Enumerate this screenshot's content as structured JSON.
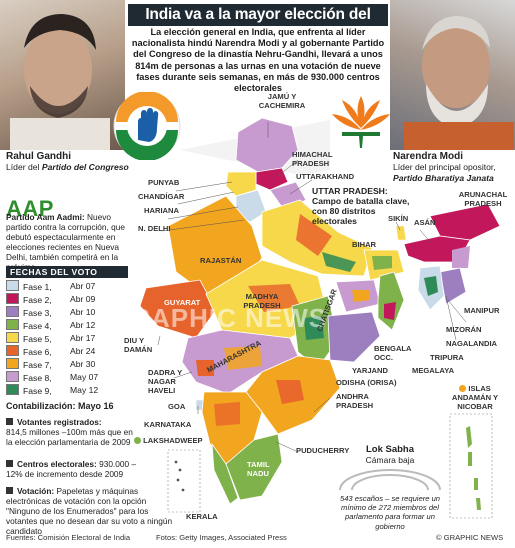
{
  "title": "India va a la mayor elección del mundo",
  "lead": "La elección general en India, que enfrenta al líder nacionalista hindú Narendra Modi y al gobernante Partido del Congreso de la dinastía Nehru-Gandhi, llevará a unos 814m de personas a las urnas en una votación de nueve fases durante seis semanas, en más de 930.000 centros electorales",
  "left_leader": {
    "name": "Rahul Gandhi",
    "role": "Líder del",
    "party": "Partido del Congreso"
  },
  "right_leader": {
    "name": "Narendra Modi",
    "role": "Líder del principal opositor,",
    "party": "Partido Bharatiya Janata"
  },
  "aap": {
    "logo": "AAP",
    "party": "Partido Aam Aadmi:",
    "description": " Nuevo partido contra la corrupción, que debutó espectacularmente en elecciones recientes en Nueva Delhi, también competirá en la próxima"
  },
  "legend": {
    "title": "FECHAS DEL VOTO",
    "phases": [
      {
        "label": "Fase 1,",
        "date": "Abr 07",
        "color": "#c9dbe8"
      },
      {
        "label": "Fase 2,",
        "date": "Abr 09",
        "color": "#c2185b"
      },
      {
        "label": "Fase 3,",
        "date": "Abr 10",
        "color": "#9d7fbf"
      },
      {
        "label": "Fase 4,",
        "date": "Abr 12",
        "color": "#7fb24a"
      },
      {
        "label": "Fase 5,",
        "date": "Abr 17",
        "color": "#f6d84a"
      },
      {
        "label": "Fase 6,",
        "date": "Abr 24",
        "color": "#e7632c"
      },
      {
        "label": "Fase 7,",
        "date": "Abr 30",
        "color": "#f2a51f"
      },
      {
        "label": "Fase 8,",
        "date": "May 07",
        "color": "#c79ad0"
      },
      {
        "label": "Fase 9,",
        "date": "May 12",
        "color": "#2e8b57"
      }
    ]
  },
  "count": "Contabilización: Mayo 16",
  "bullets": {
    "voters_title": "Votantes registrados:",
    "voters_text": "814,5 millones –100m más que en la elección parlamentaria de 2009",
    "centres_title": "Centros electorales:",
    "centres_text": " 930.000 –12% de incremento desde 2009",
    "vote_title": "Votación:",
    "vote_text": " Papeletas y máquinas electrónicas de votación con la opción \"Ninguno de los Enumerados\" para los votantes que no desean dar su voto a ningún candidato"
  },
  "up": {
    "title": "UTTAR PRADESH:",
    "text": "Campo de batalla clave, con 80 distritos electorales"
  },
  "lok_sabha": {
    "title": "Lok Sabha",
    "subtitle": "Cámara baja",
    "note": "543 escaños – se requiere un mínimo de 272 miembros del parlamento para formar un gobierno"
  },
  "islands": "ISLAS ANDAMÁN Y NICOBAR",
  "regions": {
    "jk": "JAMÚ Y CACHEMIRA",
    "hp": "HIMACHAL PRADESH",
    "uk": "UTTARAKHAND",
    "pb": "PUNYAB",
    "ch": "CHANDÍGAR",
    "hr": "HARIANA",
    "dl": "N. DELHI",
    "rj": "RAJASTÁN",
    "sk": "SIKÍN",
    "ar": "ARUNACHAL PRADESH",
    "as": "ASÁN",
    "br": "BIHAR",
    "mn": "MANIPUR",
    "mz": "MIZORÁN",
    "nl": "NAGALANDIA",
    "tr": "TRIPURA",
    "ml": "MEGALAYA",
    "wb": "BENGALA OCC.",
    "jh": "YARJAND",
    "gj": "GUYARAT",
    "dd": "DIU Y DAMÁN",
    "mp": "MADHYA PRADESH",
    "cg": "CHATISGAR",
    "mh": "MAHARASHTRA",
    "od": "ODISHA (ORISA)",
    "dn": "DADRA Y NAGAR HAVELI",
    "ap": "ANDHRA PRADESH",
    "ga": "GOA",
    "ka": "KARNATAKA",
    "py": "PUDUCHERRY",
    "ld": "LAKSHADWEEP",
    "tn": "TAMIL NADU",
    "kl": "KERALA"
  },
  "watermark": "GRAPHIC NEWS",
  "footer": {
    "sources": "Fuentes: Comisión Electoral de India",
    "photos": "Fotos: Getty Images, Associated Press",
    "credit": "© GRAPHIC NEWS"
  }
}
